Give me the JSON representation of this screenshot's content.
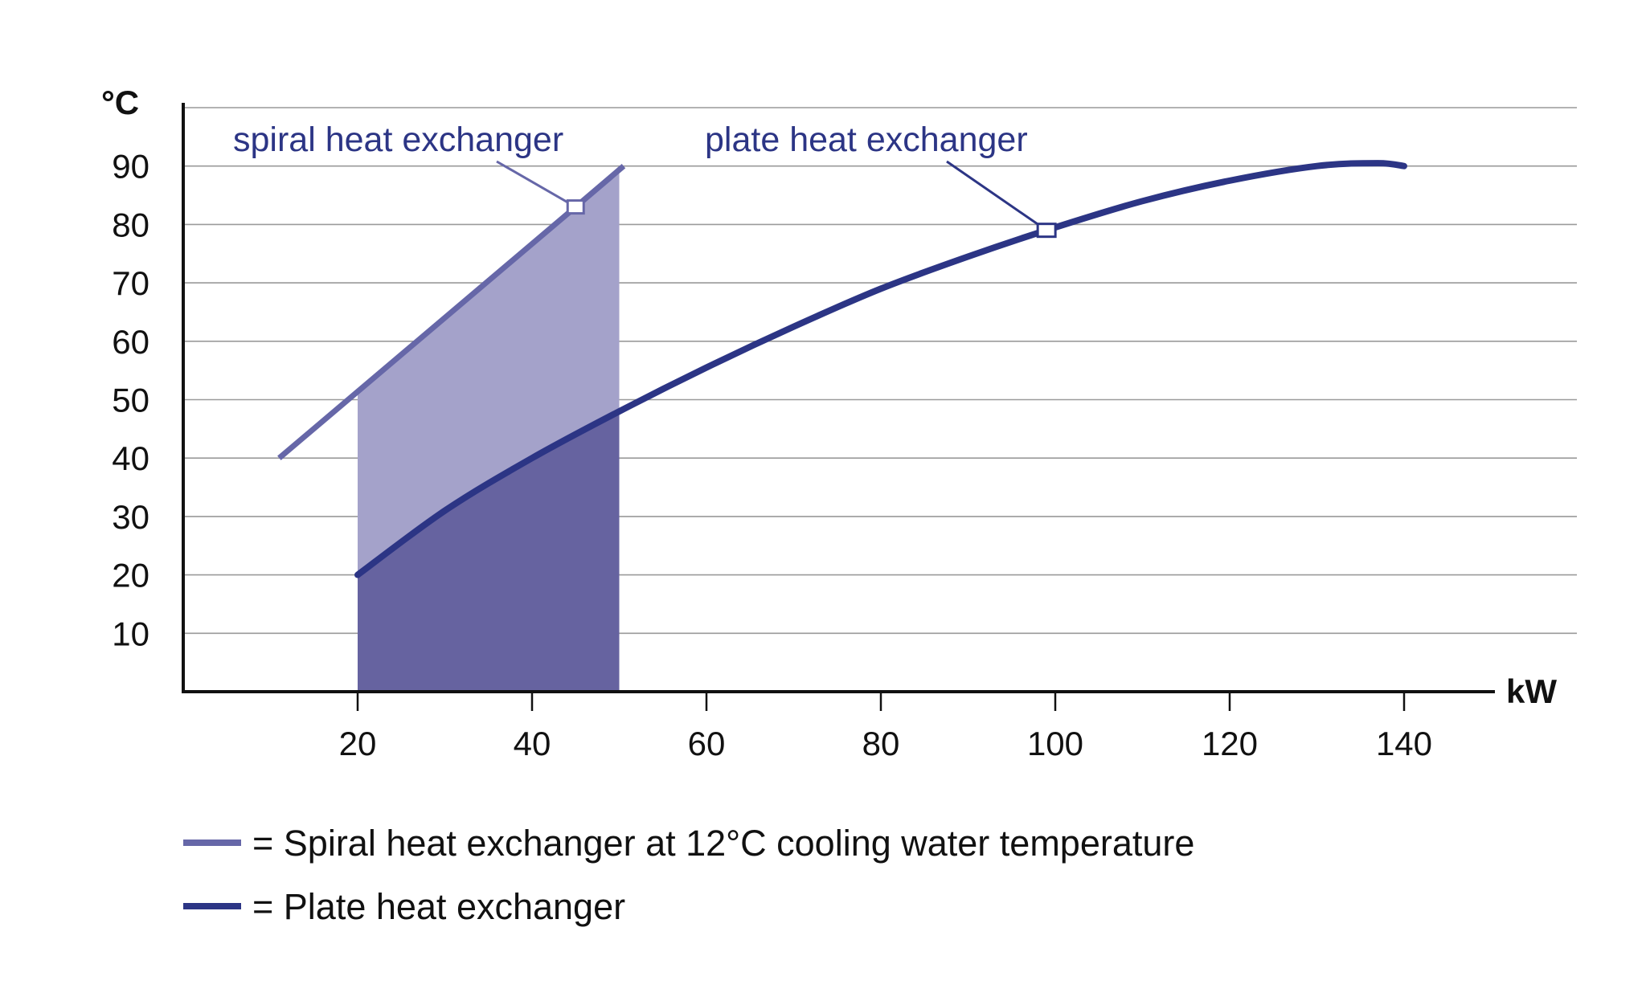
{
  "chart_data": {
    "type": "line",
    "title": "",
    "xlabel": "kW",
    "ylabel": "°C",
    "xlim": [
      0,
      150
    ],
    "ylim": [
      0,
      100
    ],
    "x_ticks": [
      20,
      40,
      60,
      80,
      100,
      120,
      140
    ],
    "y_ticks": [
      10,
      20,
      30,
      40,
      50,
      60,
      70,
      80,
      90
    ],
    "grid": "horizontal",
    "colors": {
      "spiral_line": "#6667a8",
      "plate_line": "#2c3585",
      "spiral_area": "#a4a2ca",
      "plate_area": "#6663a0",
      "axis": "#111111",
      "grid": "#9a9a9a"
    },
    "series": [
      {
        "key": "spiral",
        "x": [
          11,
          45,
          50.5
        ],
        "y": [
          40,
          83,
          90
        ]
      },
      {
        "key": "plate",
        "x": [
          20,
          30,
          40,
          50,
          60,
          70,
          80,
          90,
          100,
          110,
          120,
          130,
          137,
          140
        ],
        "y": [
          20,
          31,
          40,
          48,
          55.5,
          62.5,
          69,
          74.5,
          79.5,
          84,
          87.5,
          90,
          90.5,
          90
        ]
      }
    ],
    "shaded_regions": [
      {
        "key": "spiral-zone",
        "x_from": 20,
        "x_to": 50,
        "y_bottom": 0,
        "y_top_left": 51,
        "y_top_right": 90
      },
      {
        "key": "plate-zone",
        "x_from": 20,
        "x_to": 50,
        "y_bottom": 0,
        "follows": "plate"
      }
    ],
    "annotations": [
      {
        "key": "spiral",
        "text": "spiral heat exchanger",
        "point": [
          45,
          83
        ]
      },
      {
        "key": "plate",
        "text": "plate heat exchanger",
        "point": [
          99,
          79
        ]
      }
    ],
    "legend": {
      "placement": "bottom-left",
      "items": [
        {
          "key": "spiral",
          "text": "= Spiral heat exchanger at 12°C cooling water temperature"
        },
        {
          "key": "plate",
          "text": "= Plate heat exchanger"
        }
      ]
    }
  }
}
